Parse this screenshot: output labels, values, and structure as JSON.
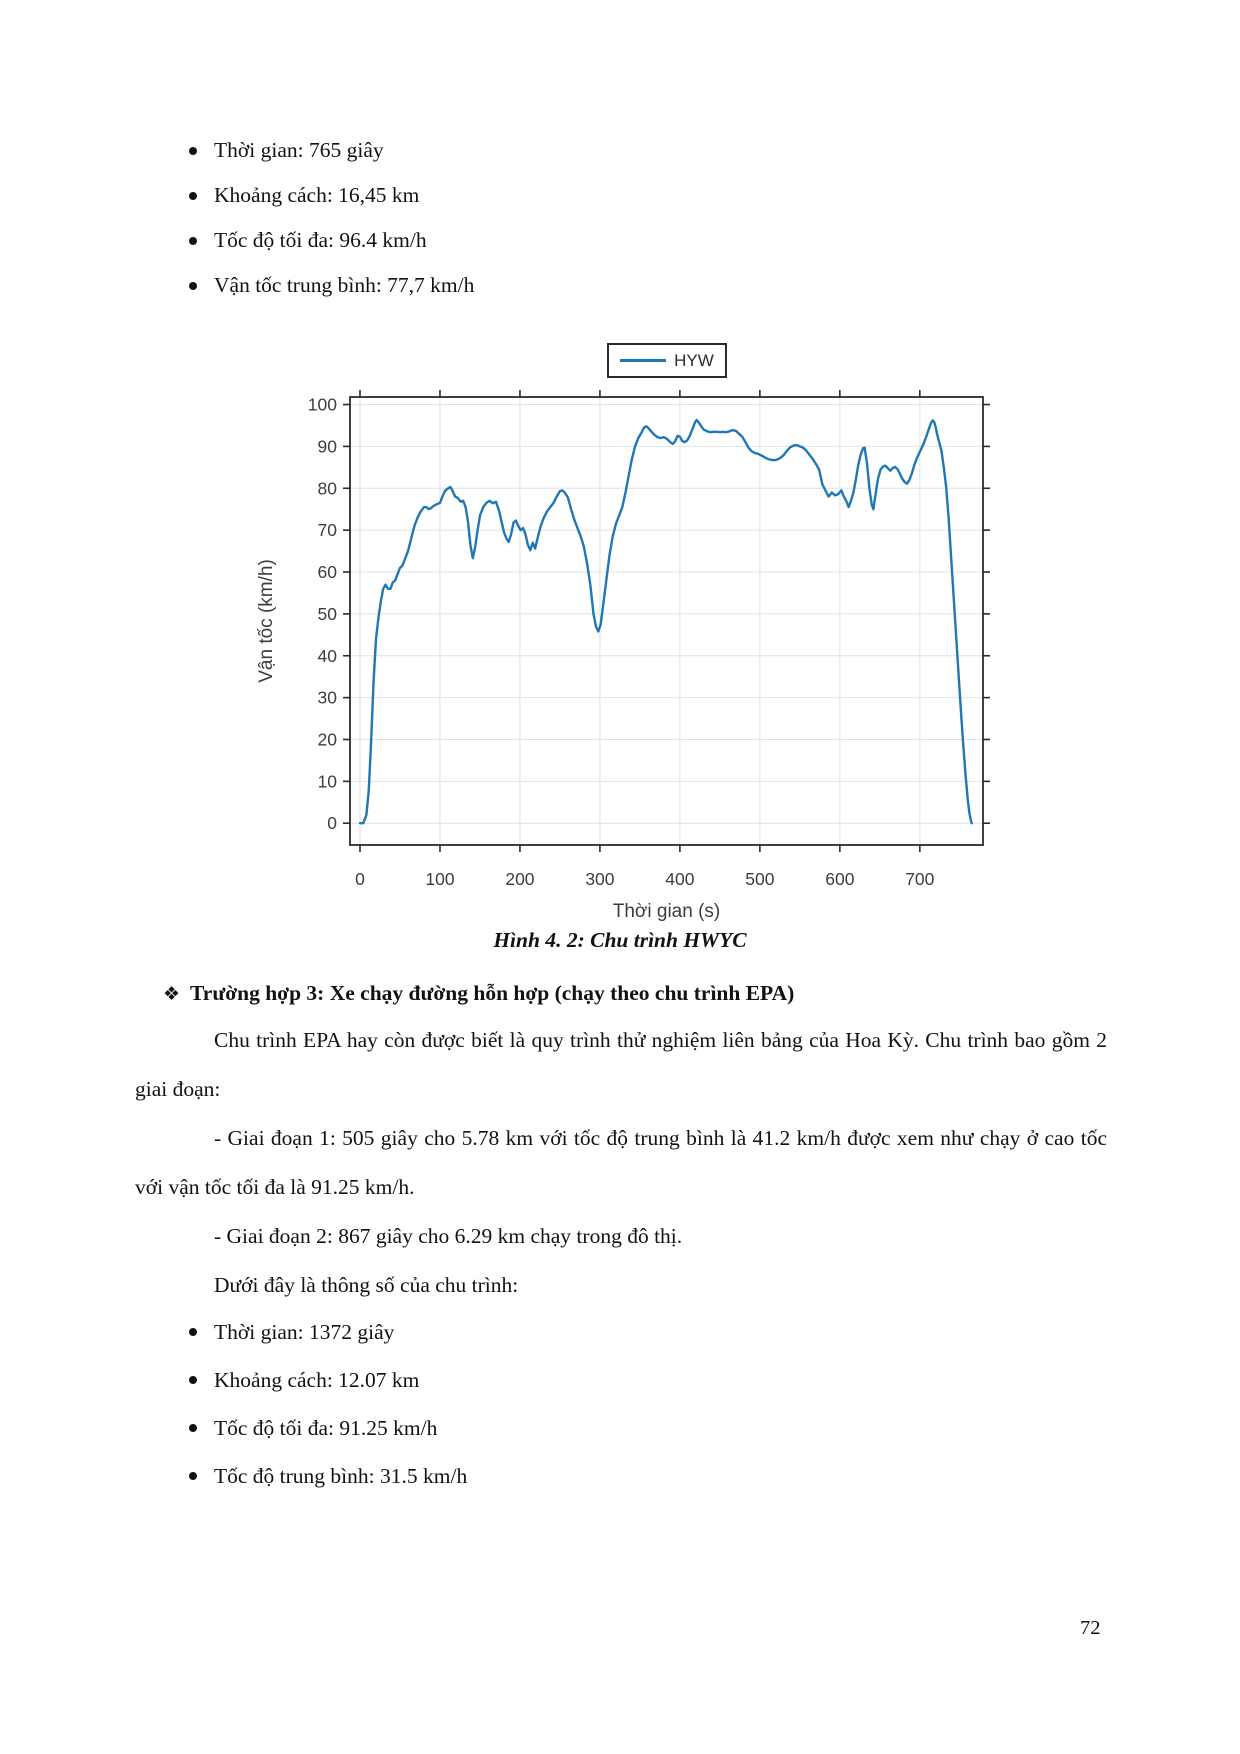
{
  "page": {
    "number": "72"
  },
  "top_specs": {
    "items": [
      "Thời gian: 765 giây",
      "Khoảng cách: 16,45 km",
      "Tốc độ tối đa: 96.4 km/h",
      "Vận tốc trung bình: 77,7 km/h"
    ]
  },
  "figure": {
    "caption": "Hình 4. 2: Chu trình HWYC"
  },
  "section": {
    "marker": "❖",
    "heading": "Trường hợp 3: Xe chạy đường hỗn hợp (chạy theo chu trình EPA)",
    "paragraphs": [
      "Chu trình EPA hay còn được biết là quy trình thử nghiệm liên bảng của Hoa Kỳ. Chu trình bao gồm 2 giai đoạn:",
      "- Giai đoạn 1: 505 giây cho 5.78 km với tốc độ trung bình là 41.2 km/h được xem như chạy ở cao tốc với vận tốc tối đa là 91.25 km/h.",
      "- Giai đoạn 2: 867 giây cho 6.29 km chạy trong đô thị.",
      "Dưới đây là thông số của chu trình:"
    ]
  },
  "bottom_specs": {
    "items": [
      "Thời gian: 1372 giây",
      "Khoảng cách: 12.07 km",
      "Tốc độ tối đa: 91.25 km/h",
      "Tốc độ trung bình: 31.5 km/h"
    ]
  },
  "chart_data": {
    "type": "line",
    "title": "",
    "legend_entries": [
      "HYW"
    ],
    "legend_position": "above-plot-center",
    "xlabel": "Thời gian (s)",
    "ylabel": "Vận tốc (km/h)",
    "xlim": [
      -12.5,
      779
    ],
    "ylim": [
      -5.2,
      101.8
    ],
    "xticks": [
      0,
      100,
      200,
      300,
      400,
      500,
      600,
      700
    ],
    "yticks": [
      0,
      10,
      20,
      30,
      40,
      50,
      60,
      70,
      80,
      90,
      100
    ],
    "grid": true,
    "colors": {
      "line": "#1f77b4",
      "grid": "#e2e2e2",
      "axis": "#2b2b2b",
      "tick_label": "#3d3d3d"
    },
    "series": [
      {
        "name": "HYW",
        "points": [
          [
            0,
            0
          ],
          [
            4,
            0
          ],
          [
            8,
            2
          ],
          [
            11,
            8
          ],
          [
            14,
            20
          ],
          [
            17,
            34
          ],
          [
            20,
            44
          ],
          [
            23,
            49
          ],
          [
            26,
            53
          ],
          [
            29,
            56
          ],
          [
            32,
            57
          ],
          [
            35,
            56
          ],
          [
            38,
            56
          ],
          [
            41,
            57.5
          ],
          [
            44,
            58
          ],
          [
            47,
            59.5
          ],
          [
            50,
            61
          ],
          [
            53,
            61.5
          ],
          [
            56,
            63
          ],
          [
            60,
            65
          ],
          [
            64,
            68
          ],
          [
            68,
            71
          ],
          [
            72,
            73
          ],
          [
            76,
            74.5
          ],
          [
            80,
            75.5
          ],
          [
            83,
            75.5
          ],
          [
            86,
            75
          ],
          [
            89,
            75.3
          ],
          [
            92,
            75.8
          ],
          [
            96,
            76.2
          ],
          [
            100,
            76.5
          ],
          [
            103,
            78
          ],
          [
            106,
            79.3
          ],
          [
            110,
            80
          ],
          [
            113,
            80.3
          ],
          [
            116,
            79.3
          ],
          [
            119,
            78
          ],
          [
            122,
            77.7
          ],
          [
            126,
            76.8
          ],
          [
            129,
            77
          ],
          [
            132,
            75.5
          ],
          [
            135,
            72
          ],
          [
            138,
            66.5
          ],
          [
            141,
            63.3
          ],
          [
            144,
            66
          ],
          [
            147,
            70
          ],
          [
            150,
            73.5
          ],
          [
            154,
            75.5
          ],
          [
            158,
            76.5
          ],
          [
            162,
            77
          ],
          [
            166,
            76.4
          ],
          [
            170,
            76.8
          ],
          [
            174,
            74.5
          ],
          [
            177,
            72
          ],
          [
            180,
            69.5
          ],
          [
            183,
            68
          ],
          [
            186,
            67.2
          ],
          [
            189,
            69
          ],
          [
            192,
            71.8
          ],
          [
            195,
            72.3
          ],
          [
            198,
            71
          ],
          [
            201,
            70
          ],
          [
            204,
            70.5
          ],
          [
            207,
            69
          ],
          [
            210,
            66.5
          ],
          [
            213,
            65.2
          ],
          [
            216,
            67
          ],
          [
            219,
            65.6
          ],
          [
            222,
            68
          ],
          [
            226,
            71
          ],
          [
            230,
            73
          ],
          [
            234,
            74.5
          ],
          [
            238,
            75.5
          ],
          [
            242,
            76.5
          ],
          [
            246,
            78
          ],
          [
            250,
            79.3
          ],
          [
            253,
            79.5
          ],
          [
            256,
            79
          ],
          [
            260,
            77.8
          ],
          [
            264,
            75
          ],
          [
            268,
            72.5
          ],
          [
            272,
            70.5
          ],
          [
            276,
            68.5
          ],
          [
            280,
            66
          ],
          [
            284,
            62
          ],
          [
            288,
            57
          ],
          [
            292,
            50
          ],
          [
            295,
            47
          ],
          [
            298,
            45.8
          ],
          [
            301,
            47.5
          ],
          [
            304,
            52
          ],
          [
            308,
            58
          ],
          [
            312,
            64
          ],
          [
            316,
            68.5
          ],
          [
            320,
            71.5
          ],
          [
            324,
            73.5
          ],
          [
            328,
            75.5
          ],
          [
            332,
            79
          ],
          [
            336,
            83
          ],
          [
            340,
            87
          ],
          [
            344,
            90
          ],
          [
            348,
            92
          ],
          [
            352,
            93.3
          ],
          [
            355,
            94.5
          ],
          [
            358,
            94.8
          ],
          [
            361,
            94.3
          ],
          [
            364,
            93.6
          ],
          [
            368,
            92.8
          ],
          [
            372,
            92.2
          ],
          [
            376,
            92
          ],
          [
            380,
            92.2
          ],
          [
            384,
            91.8
          ],
          [
            388,
            91
          ],
          [
            391,
            90.6
          ],
          [
            394,
            91.2
          ],
          [
            397,
            92.5
          ],
          [
            400,
            92.3
          ],
          [
            403,
            91.3
          ],
          [
            406,
            91
          ],
          [
            409,
            91.4
          ],
          [
            412,
            92.4
          ],
          [
            416,
            94.3
          ],
          [
            419,
            95.8
          ],
          [
            421,
            96.3
          ],
          [
            424,
            95.6
          ],
          [
            427,
            94.7
          ],
          [
            430,
            94
          ],
          [
            434,
            93.6
          ],
          [
            438,
            93.4
          ],
          [
            442,
            93.5
          ],
          [
            446,
            93.5
          ],
          [
            450,
            93.4
          ],
          [
            454,
            93.5
          ],
          [
            458,
            93.4
          ],
          [
            462,
            93.6
          ],
          [
            466,
            93.9
          ],
          [
            470,
            93.7
          ],
          [
            474,
            93
          ],
          [
            478,
            92.3
          ],
          [
            482,
            91
          ],
          [
            486,
            89.6
          ],
          [
            490,
            88.8
          ],
          [
            494,
            88.4
          ],
          [
            498,
            88.2
          ],
          [
            502,
            87.8
          ],
          [
            506,
            87.4
          ],
          [
            510,
            87
          ],
          [
            514,
            86.8
          ],
          [
            518,
            86.7
          ],
          [
            522,
            86.9
          ],
          [
            526,
            87.3
          ],
          [
            530,
            88
          ],
          [
            534,
            89
          ],
          [
            538,
            89.8
          ],
          [
            542,
            90.2
          ],
          [
            546,
            90.3
          ],
          [
            550,
            90
          ],
          [
            554,
            89.7
          ],
          [
            558,
            89
          ],
          [
            562,
            88
          ],
          [
            566,
            87
          ],
          [
            570,
            85.8
          ],
          [
            574,
            84.5
          ],
          [
            578,
            81
          ],
          [
            582,
            79.5
          ],
          [
            586,
            78
          ],
          [
            590,
            79
          ],
          [
            594,
            78.3
          ],
          [
            598,
            78.6
          ],
          [
            602,
            79.5
          ],
          [
            605,
            78
          ],
          [
            608,
            77
          ],
          [
            611,
            75.5
          ],
          [
            614,
            77
          ],
          [
            617,
            79
          ],
          [
            620,
            82
          ],
          [
            623,
            85.5
          ],
          [
            626,
            88
          ],
          [
            629,
            89.5
          ],
          [
            631,
            89.7
          ],
          [
            634,
            86
          ],
          [
            637,
            80
          ],
          [
            640,
            76
          ],
          [
            642,
            75
          ],
          [
            645,
            79
          ],
          [
            648,
            82.5
          ],
          [
            651,
            84.5
          ],
          [
            654,
            85.2
          ],
          [
            657,
            85.4
          ],
          [
            660,
            84.8
          ],
          [
            663,
            84.2
          ],
          [
            666,
            84.8
          ],
          [
            669,
            85.1
          ],
          [
            672,
            84.6
          ],
          [
            675,
            83.5
          ],
          [
            678,
            82.3
          ],
          [
            681,
            81.5
          ],
          [
            684,
            81.1
          ],
          [
            687,
            82
          ],
          [
            690,
            83.5
          ],
          [
            693,
            85.5
          ],
          [
            696,
            87
          ],
          [
            699,
            88.3
          ],
          [
            702,
            89.5
          ],
          [
            705,
            90.8
          ],
          [
            708,
            92.3
          ],
          [
            711,
            94
          ],
          [
            714,
            95.6
          ],
          [
            716,
            96.2
          ],
          [
            718,
            95.8
          ],
          [
            720,
            94.5
          ],
          [
            722,
            92.6
          ],
          [
            725,
            90.5
          ],
          [
            727,
            89
          ],
          [
            730,
            85
          ],
          [
            733,
            80.2
          ],
          [
            736,
            73
          ],
          [
            739,
            64
          ],
          [
            742,
            55
          ],
          [
            745,
            46
          ],
          [
            748,
            37
          ],
          [
            751,
            28
          ],
          [
            754,
            19.5
          ],
          [
            757,
            12
          ],
          [
            760,
            5.5
          ],
          [
            762,
            2.5
          ],
          [
            764,
            0.5
          ],
          [
            765,
            0
          ]
        ]
      }
    ]
  }
}
